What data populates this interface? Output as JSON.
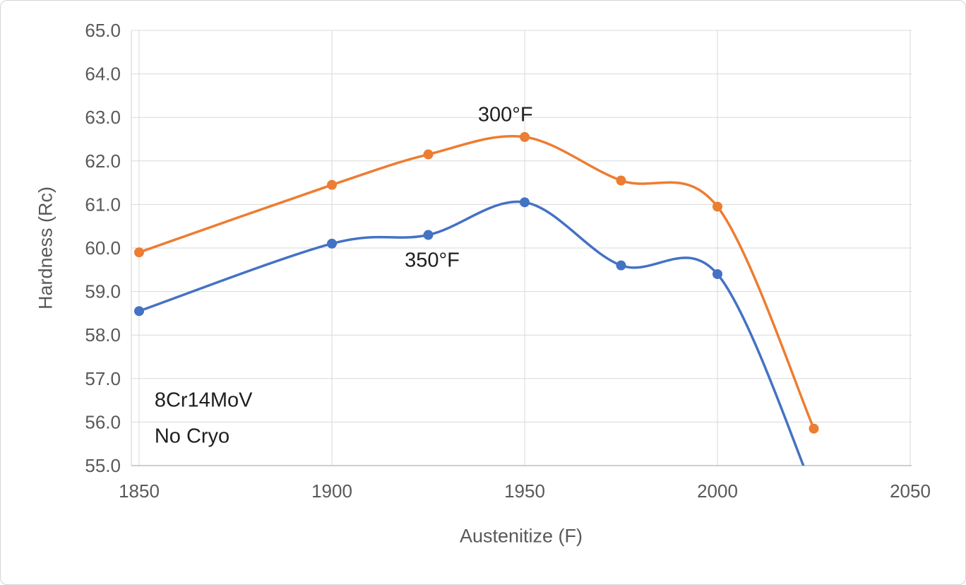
{
  "chart_data": {
    "type": "line",
    "title": "",
    "xlabel": "Austenitize (F)",
    "ylabel": "Hardness (Rc)",
    "xlim": [
      1850,
      2050
    ],
    "ylim": [
      55.0,
      65.0
    ],
    "x_ticks": [
      1850,
      1900,
      1950,
      2000,
      2050
    ],
    "y_tick_step": 1.0,
    "grid": true,
    "legend": "none",
    "x": [
      1850,
      1900,
      1925,
      1950,
      1975,
      2000,
      2025
    ],
    "series": [
      {
        "name": "300°F",
        "color": "#ED7D31",
        "values": [
          59.9,
          61.45,
          62.15,
          62.55,
          61.55,
          60.95,
          55.85
        ]
      },
      {
        "name": "350°F",
        "color": "#4472C4",
        "values": [
          58.55,
          60.1,
          60.3,
          61.05,
          59.6,
          59.4,
          54.4
        ]
      }
    ],
    "annotations": [
      {
        "text": "300°F",
        "x": 1945,
        "y": 63.05,
        "anchor": "middle"
      },
      {
        "text": "350°F",
        "x": 1926,
        "y": 59.7,
        "anchor": "middle"
      },
      {
        "text": "8Cr14MoV",
        "x": 1854,
        "y": 56.5,
        "anchor": "start"
      },
      {
        "text": "No Cryo",
        "x": 1854,
        "y": 55.67,
        "anchor": "start"
      }
    ]
  }
}
